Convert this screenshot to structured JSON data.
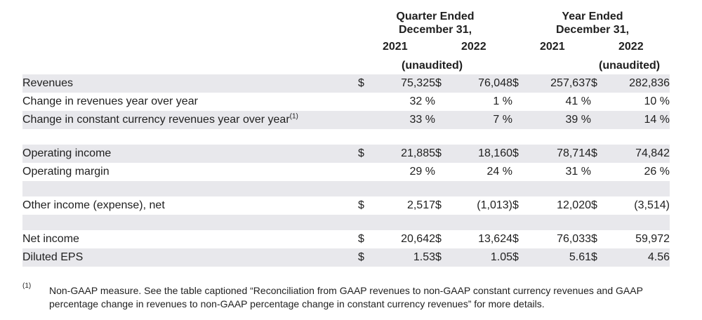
{
  "header": {
    "quarter_line1": "Quarter Ended",
    "quarter_line2": "December 31,",
    "year_line1": "Year Ended",
    "year_line2": "December 31,",
    "years": [
      "2021",
      "2022",
      "2021",
      "2022"
    ],
    "unaudited": "(unaudited)"
  },
  "rows": [
    {
      "label": "Revenues",
      "cur": "$",
      "values": [
        "75,325",
        "76,048",
        "257,637",
        "282,836"
      ]
    },
    {
      "label": "Change in revenues year over year",
      "values": [
        "32 %",
        "1 %",
        "41 %",
        "10 %"
      ]
    },
    {
      "label": "Change in constant currency revenues year over year",
      "sup": "(1)",
      "values": [
        "33 %",
        "7 %",
        "39 %",
        "14 %"
      ]
    },
    {
      "label": "Operating income",
      "cur": "$",
      "values": [
        "21,885",
        "18,160",
        "78,714",
        "74,842"
      ]
    },
    {
      "label": "Operating margin",
      "values": [
        "29 %",
        "24 %",
        "31 %",
        "26 %"
      ]
    },
    {
      "label": "Other income (expense), net",
      "cur": "$",
      "values": [
        "2,517",
        "(1,013)",
        "12,020",
        "(3,514)"
      ]
    },
    {
      "label": "Net income",
      "cur": "$",
      "values": [
        "20,642",
        "13,624",
        "76,033",
        "59,972"
      ]
    },
    {
      "label": "Diluted EPS",
      "cur": "$",
      "values": [
        "1.53",
        "1.05",
        "5.61",
        "4.56"
      ]
    }
  ],
  "footnote": {
    "mark": "(1)",
    "text": "Non-GAAP measure. See the table captioned “Reconciliation from GAAP revenues to non-GAAP constant currency revenues and GAAP percentage change in revenues to non-GAAP percentage change in constant currency revenues” for more details."
  }
}
